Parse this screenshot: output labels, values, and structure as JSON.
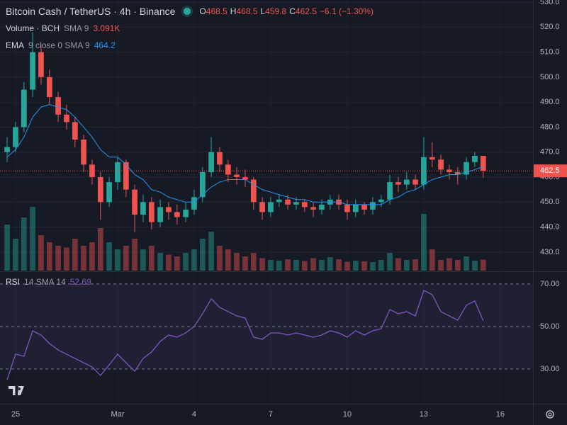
{
  "chart_data": [
    {
      "type": "candlestick",
      "title": "Bitcoin Cash / TetherUS · 4h · Binance",
      "ohlc_labels": [
        "O",
        "H",
        "L",
        "C"
      ],
      "change_label": "−6.1 (−1.30%)",
      "colors": {
        "up": "#26a69a",
        "down": "#ef5350"
      },
      "x": [
        -0.33,
        0,
        0.33,
        0.67,
        1,
        1.33,
        1.67,
        2,
        2.33,
        2.67,
        3,
        3.33,
        3.67,
        4,
        4.33,
        4.67,
        5,
        5.33,
        5.67,
        6,
        6.33,
        6.67,
        7,
        7.33,
        7.67,
        8,
        8.33,
        8.67,
        9,
        9.33,
        9.67,
        10,
        10.33,
        10.67,
        11,
        11.33,
        11.67,
        12,
        12.33,
        12.67,
        13,
        13.33,
        13.67,
        14,
        14.33,
        14.67,
        15,
        15.33,
        15.67,
        16,
        16.33,
        16.67,
        17,
        17.33,
        17.67,
        18,
        18.33
      ],
      "open": [
        470,
        472,
        480,
        495,
        510,
        500,
        492,
        485,
        482,
        475,
        465,
        460,
        450,
        458,
        466,
        455,
        445,
        450,
        442,
        448,
        446,
        444,
        447,
        452,
        462,
        470,
        465,
        461,
        460,
        459,
        450,
        446,
        450,
        451,
        449,
        450,
        448,
        447,
        449,
        451,
        449,
        446,
        449,
        447,
        450,
        451,
        458,
        457,
        459,
        457,
        468,
        467,
        463,
        462,
        461,
        466,
        468.5
      ],
      "high": [
        476,
        482,
        498,
        518,
        513,
        503,
        494,
        489,
        484,
        477,
        467,
        462,
        460,
        468,
        467,
        457,
        453,
        452,
        451,
        450,
        449,
        450,
        455,
        464,
        476,
        472,
        467,
        464,
        463,
        460,
        452,
        452,
        453,
        453,
        452,
        451,
        450,
        451,
        453,
        453,
        451,
        451,
        450,
        452,
        453,
        461,
        460,
        462,
        461,
        476,
        474,
        469,
        465,
        464,
        468,
        470,
        468.5
      ],
      "low": [
        466,
        470,
        478,
        492,
        497,
        489,
        482,
        479,
        472,
        462,
        457,
        443,
        448,
        455,
        452,
        438,
        442,
        439,
        440,
        443,
        441,
        442,
        445,
        450,
        460,
        462,
        458,
        457,
        456,
        447,
        443,
        444,
        448,
        447,
        447,
        446,
        444,
        445,
        447,
        447,
        443,
        444,
        445,
        445,
        448,
        449,
        454,
        455,
        455,
        455,
        464,
        461,
        459,
        457,
        459,
        464,
        459.8
      ],
      "close": [
        472,
        480,
        495,
        510,
        500,
        492,
        485,
        482,
        475,
        465,
        460,
        450,
        458,
        466,
        455,
        445,
        450,
        442,
        448,
        446,
        444,
        447,
        452,
        462,
        470,
        465,
        461,
        460,
        459,
        450,
        446,
        450,
        451,
        449,
        450,
        448,
        447,
        449,
        451,
        449,
        446,
        449,
        447,
        450,
        451,
        458,
        457,
        459,
        457,
        468,
        467,
        463,
        462,
        461,
        466,
        468.5,
        462.5
      ],
      "volume": {
        "name": "Volume · BCH",
        "indicator": "SMA 9",
        "values": [
          13000,
          9000,
          15000,
          18000,
          10000,
          8000,
          7000,
          6500,
          9000,
          7000,
          8000,
          12000,
          8000,
          6000,
          7000,
          9000,
          6000,
          7000,
          5000,
          4500,
          4000,
          5000,
          6000,
          9000,
          11000,
          7000,
          6000,
          5000,
          4000,
          5000,
          3500,
          3000,
          2800,
          3200,
          3000,
          2700,
          3500,
          3000,
          3800,
          3200,
          2500,
          2800,
          2600,
          2400,
          3000,
          5000,
          3500,
          3000,
          3200,
          16000,
          6000,
          3000,
          3500,
          3000,
          4000,
          2800,
          3091
        ],
        "value_labels": [
          null,
          null,
          null,
          null,
          null,
          null,
          null,
          null,
          null,
          null,
          null,
          null,
          null,
          null,
          null,
          null,
          null,
          null,
          null,
          null,
          null,
          null,
          null,
          null,
          null,
          null,
          null,
          null,
          null,
          null,
          null,
          null,
          null,
          null,
          null,
          null,
          null,
          null,
          null,
          null,
          null,
          null,
          null,
          null,
          null,
          null,
          null,
          null,
          null,
          null,
          null,
          null,
          null,
          null,
          null,
          null,
          "3.091K"
        ]
      },
      "ema": {
        "name": "EMA",
        "settings": "9 close 0 SMA 9",
        "color": "#2196f3",
        "values": [
          468,
          471,
          476,
          484,
          488,
          489,
          488,
          487,
          484,
          480,
          476,
          471,
          468,
          468,
          465,
          461,
          459,
          455,
          454,
          452,
          451,
          450,
          450,
          453,
          456,
          458,
          459,
          459,
          459,
          457,
          455,
          454,
          453,
          452,
          451,
          451,
          450,
          450,
          450,
          450,
          449,
          449,
          449,
          449,
          449,
          451,
          452,
          454,
          455,
          457,
          459,
          460,
          461,
          461,
          462,
          463,
          464.2
        ]
      },
      "xlim": [
        -0.61,
        20.28
      ],
      "xticks": [
        {
          "value": 0,
          "label": "25"
        },
        {
          "value": 4,
          "label": "Mar"
        },
        {
          "value": 7,
          "label": "4"
        },
        {
          "value": 10,
          "label": "7"
        },
        {
          "value": 13,
          "label": "10"
        },
        {
          "value": 16,
          "label": "13"
        },
        {
          "value": 19,
          "label": "16"
        }
      ],
      "ylim": [
        422.6,
        530.85
      ],
      "yticks": [
        {
          "value": 430,
          "label": "430.0"
        },
        {
          "value": 440,
          "label": "440.0"
        },
        {
          "value": 450,
          "label": "450.0"
        },
        {
          "value": 460,
          "label": "460.0"
        },
        {
          "value": 470,
          "label": "470.0"
        },
        {
          "value": 480,
          "label": "480.0"
        },
        {
          "value": 490,
          "label": "490.0"
        },
        {
          "value": 500,
          "label": "500.0"
        },
        {
          "value": 510,
          "label": "510.0"
        },
        {
          "value": 520,
          "label": "520.0"
        },
        {
          "value": 530,
          "label": "530.0"
        }
      ],
      "grid": true
    },
    {
      "type": "line",
      "title": "RSI",
      "settings": "14 SMA 14",
      "color": "#7e57c2",
      "values": [
        25,
        37,
        36,
        48,
        46,
        42,
        39,
        37,
        35,
        33,
        31,
        27,
        32,
        37,
        33,
        29,
        35,
        38,
        43,
        46,
        45,
        47,
        50,
        56,
        63,
        59,
        57,
        55,
        54,
        45,
        44,
        47,
        47,
        46,
        47,
        46,
        45,
        46,
        48,
        47,
        45,
        48,
        46,
        48,
        49,
        58,
        56,
        57,
        55,
        67,
        65,
        57,
        55,
        53,
        60,
        62,
        52.69
      ],
      "ylim": [
        13.7,
        75.3
      ],
      "yticks": [
        {
          "value": 30,
          "label": "30.00"
        },
        {
          "value": 50,
          "label": "50.00"
        },
        {
          "value": 70,
          "label": "70.00"
        }
      ]
    }
  ]
}
